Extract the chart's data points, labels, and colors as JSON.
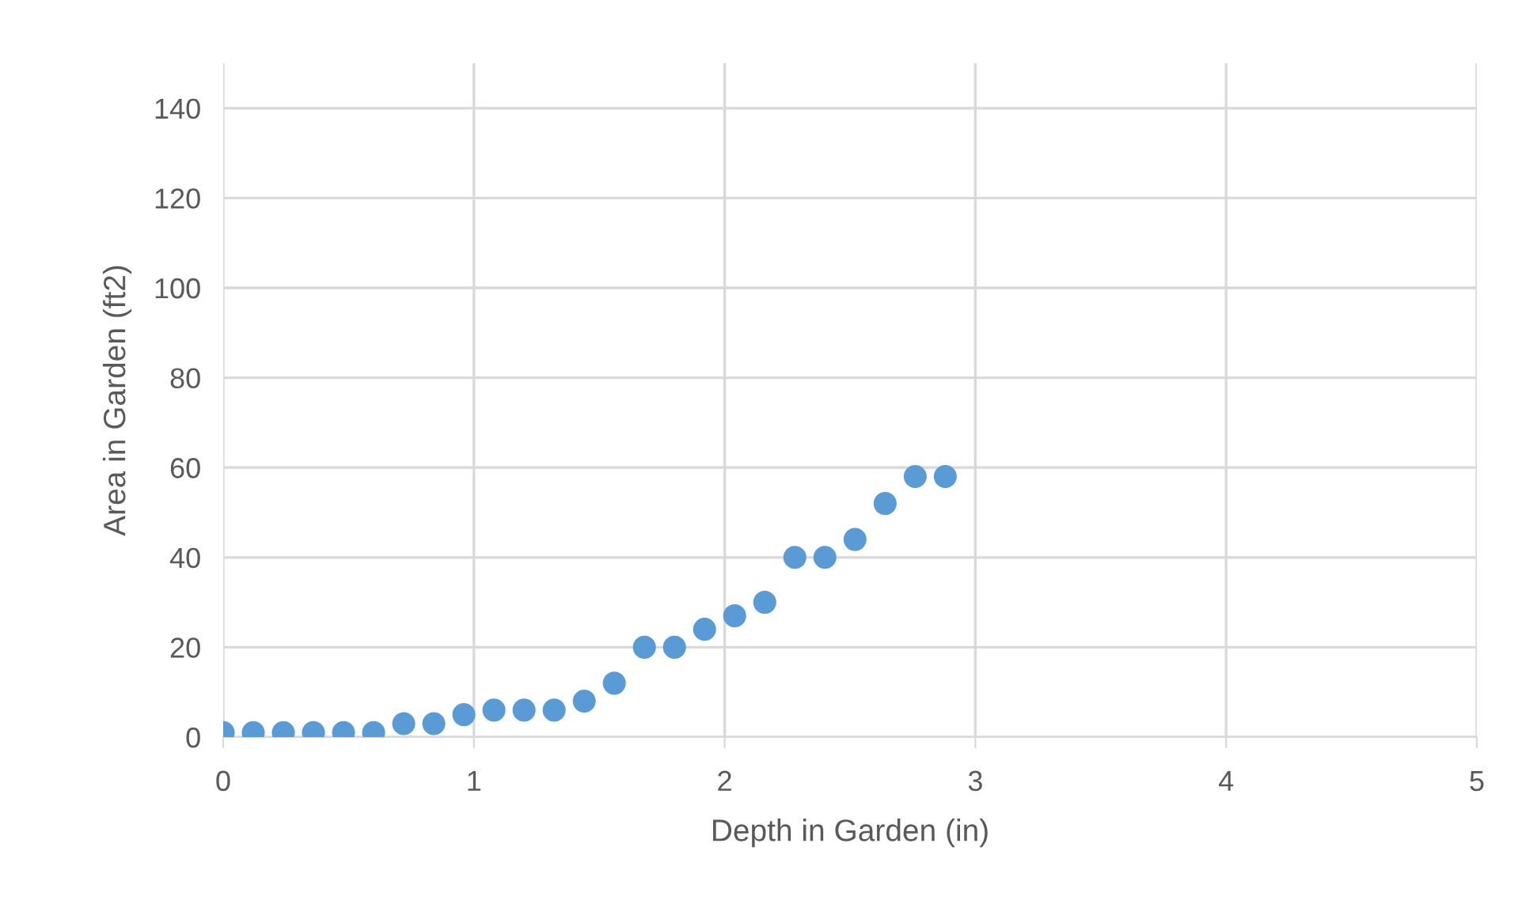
{
  "chart_data": {
    "type": "scatter",
    "xlabel": "Depth in Garden (in)",
    "ylabel": "Area in Garden (ft2)",
    "x": [
      0,
      0.12,
      0.24,
      0.36,
      0.48,
      0.6,
      0.72,
      0.84,
      0.96,
      1.08,
      1.2,
      1.32,
      1.44,
      1.56,
      1.68,
      1.8,
      1.92,
      2.04,
      2.16,
      2.28,
      2.4,
      2.52,
      2.64,
      2.76,
      2.88
    ],
    "series": [
      {
        "color": "#5b9bd5",
        "values": [
          1,
          1,
          1,
          1,
          1,
          1,
          3,
          3,
          5,
          6,
          6,
          6,
          8,
          12,
          20,
          20,
          24,
          27,
          30,
          40,
          40,
          44,
          52,
          58,
          58
        ]
      }
    ],
    "xlim": [
      0,
      5
    ],
    "xticks": [
      0,
      1,
      2,
      3,
      4,
      5
    ],
    "ylim": [
      0,
      150
    ],
    "yticks": [
      0,
      20,
      40,
      60,
      80,
      100,
      120,
      140
    ],
    "grid": true,
    "marker": "circle"
  }
}
